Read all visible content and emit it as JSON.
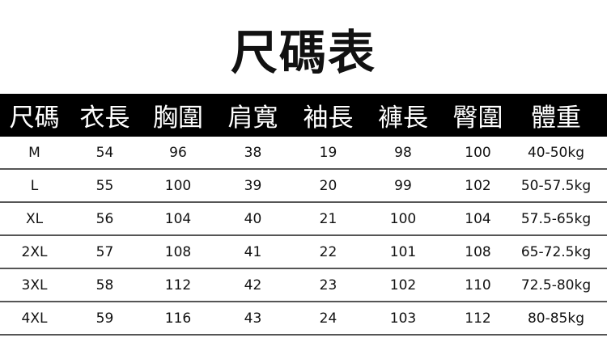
{
  "title": "尺碼表",
  "headers": [
    "尺碼",
    "衣長",
    "胸圍",
    "肩寬",
    "袖長",
    "褲長",
    "臀圍",
    "體重"
  ],
  "rows": [
    [
      "M",
      "54",
      "96",
      "38",
      "19",
      "98",
      "100",
      "40-50kg"
    ],
    [
      "L",
      "55",
      "100",
      "39",
      "20",
      "99",
      "102",
      "50-57.5kg"
    ],
    [
      "XL",
      "56",
      "104",
      "40",
      "21",
      "100",
      "104",
      "57.5-65kg"
    ],
    [
      "2XL",
      "57",
      "108",
      "41",
      "22",
      "101",
      "108",
      "65-72.5kg"
    ],
    [
      "3XL",
      "58",
      "112",
      "42",
      "23",
      "102",
      "110",
      "72.5-80kg"
    ],
    [
      "4XL",
      "59",
      "116",
      "43",
      "24",
      "103",
      "112",
      "80-85kg"
    ]
  ]
}
